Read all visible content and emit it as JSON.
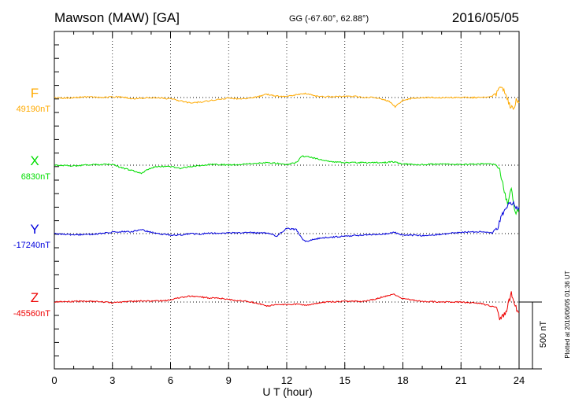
{
  "header": {
    "station": "Mawson (MAW)  [GA]",
    "coords": "GG (-67.60°,  62.88°)",
    "date": "2016/05/05"
  },
  "footer": {
    "plotted": "Plotted at 2016/06/05 01:36 UT",
    "scale_label": "500 nT"
  },
  "chart_data": {
    "type": "line",
    "xlabel": "U T (hour)",
    "xlim": [
      0,
      24
    ],
    "xticks": [
      0,
      3,
      6,
      9,
      12,
      15,
      18,
      21,
      24
    ],
    "scale_bar_nT": 500,
    "series": [
      {
        "name": "F",
        "baseline_label": "49190nT",
        "color": "#ffaa00",
        "baseline_nT": 49190,
        "points": [
          [
            0,
            0
          ],
          [
            0.5,
            -5
          ],
          [
            1,
            0
          ],
          [
            1.5,
            5
          ],
          [
            2,
            5
          ],
          [
            2.5,
            0
          ],
          [
            3,
            5
          ],
          [
            3.5,
            5
          ],
          [
            4,
            -10
          ],
          [
            4.5,
            -5
          ],
          [
            5,
            0
          ],
          [
            5.5,
            -5
          ],
          [
            6,
            -10
          ],
          [
            6.5,
            -25
          ],
          [
            7,
            -40
          ],
          [
            7.5,
            -35
          ],
          [
            8,
            -25
          ],
          [
            8.5,
            -15
          ],
          [
            9,
            -5
          ],
          [
            9.5,
            -10
          ],
          [
            10,
            -5
          ],
          [
            10.5,
            5
          ],
          [
            11,
            25
          ],
          [
            11.5,
            10
          ],
          [
            12,
            10
          ],
          [
            12.5,
            20
          ],
          [
            13,
            30
          ],
          [
            13.5,
            10
          ],
          [
            14,
            5
          ],
          [
            14.5,
            10
          ],
          [
            15,
            10
          ],
          [
            15.5,
            10
          ],
          [
            16,
            0
          ],
          [
            16.5,
            0
          ],
          [
            17,
            -15
          ],
          [
            17.3,
            -30
          ],
          [
            17.6,
            -70
          ],
          [
            18,
            -20
          ],
          [
            18.5,
            -5
          ],
          [
            19,
            0
          ],
          [
            20,
            0
          ],
          [
            21,
            0
          ],
          [
            22,
            0
          ],
          [
            22.6,
            10
          ],
          [
            22.9,
            40
          ],
          [
            23.1,
            100
          ],
          [
            23.3,
            30
          ],
          [
            23.5,
            -50
          ],
          [
            23.7,
            -100
          ],
          [
            23.85,
            -20
          ],
          [
            24,
            -40
          ]
        ]
      },
      {
        "name": "X",
        "baseline_label": "6830nT",
        "color": "#00dd00",
        "baseline_nT": 6830,
        "points": [
          [
            0,
            0
          ],
          [
            1,
            -5
          ],
          [
            2,
            5
          ],
          [
            3,
            5
          ],
          [
            3.5,
            -20
          ],
          [
            4,
            -40
          ],
          [
            4.5,
            -60
          ],
          [
            5,
            -20
          ],
          [
            5.5,
            -10
          ],
          [
            6,
            -10
          ],
          [
            6.5,
            -25
          ],
          [
            7,
            -10
          ],
          [
            7.5,
            -5
          ],
          [
            8,
            5
          ],
          [
            8.5,
            5
          ],
          [
            9,
            0
          ],
          [
            9.5,
            5
          ],
          [
            10,
            10
          ],
          [
            10.5,
            15
          ],
          [
            11,
            20
          ],
          [
            11.5,
            15
          ],
          [
            12,
            5
          ],
          [
            12.5,
            20
          ],
          [
            12.8,
            70
          ],
          [
            13.2,
            60
          ],
          [
            14,
            35
          ],
          [
            14.5,
            25
          ],
          [
            15,
            20
          ],
          [
            16,
            20
          ],
          [
            17,
            20
          ],
          [
            17.5,
            25
          ],
          [
            18,
            10
          ],
          [
            19,
            5
          ],
          [
            20,
            10
          ],
          [
            21,
            5
          ],
          [
            22,
            10
          ],
          [
            22.8,
            5
          ],
          [
            23,
            -40
          ],
          [
            23.2,
            -160
          ],
          [
            23.4,
            -300
          ],
          [
            23.6,
            -180
          ],
          [
            23.8,
            -360
          ],
          [
            24,
            -330
          ]
        ]
      },
      {
        "name": "Y",
        "baseline_label": "-17240nT",
        "color": "#0000dd",
        "baseline_nT": -17240,
        "points": [
          [
            0,
            0
          ],
          [
            1,
            -10
          ],
          [
            2,
            -5
          ],
          [
            3,
            10
          ],
          [
            3.5,
            15
          ],
          [
            4,
            15
          ],
          [
            4.5,
            30
          ],
          [
            5,
            10
          ],
          [
            5.5,
            -5
          ],
          [
            6,
            -10
          ],
          [
            6.5,
            -10
          ],
          [
            7,
            0
          ],
          [
            7.5,
            -5
          ],
          [
            8,
            5
          ],
          [
            8.5,
            0
          ],
          [
            9,
            5
          ],
          [
            9.5,
            5
          ],
          [
            10,
            10
          ],
          [
            10.5,
            5
          ],
          [
            11,
            5
          ],
          [
            11.5,
            -20
          ],
          [
            12,
            40
          ],
          [
            12.5,
            30
          ],
          [
            12.8,
            -40
          ],
          [
            13,
            -60
          ],
          [
            13.5,
            -40
          ],
          [
            14,
            -30
          ],
          [
            15,
            -20
          ],
          [
            16,
            -10
          ],
          [
            17,
            -5
          ],
          [
            17.5,
            10
          ],
          [
            18,
            -10
          ],
          [
            19,
            -15
          ],
          [
            20,
            -5
          ],
          [
            21,
            10
          ],
          [
            22,
            15
          ],
          [
            22.6,
            5
          ],
          [
            22.9,
            50
          ],
          [
            23.1,
            150
          ],
          [
            23.3,
            170
          ],
          [
            23.5,
            240
          ],
          [
            23.8,
            210
          ],
          [
            24,
            200
          ]
        ]
      },
      {
        "name": "Z",
        "baseline_label": "-45560nT",
        "color": "#ee0000",
        "baseline_nT": -45560,
        "points": [
          [
            0,
            0
          ],
          [
            1,
            5
          ],
          [
            2,
            5
          ],
          [
            3,
            -5
          ],
          [
            3.5,
            0
          ],
          [
            4,
            5
          ],
          [
            4.5,
            10
          ],
          [
            5,
            5
          ],
          [
            5.5,
            10
          ],
          [
            6,
            15
          ],
          [
            6.5,
            35
          ],
          [
            7,
            45
          ],
          [
            7.5,
            40
          ],
          [
            8,
            30
          ],
          [
            8.5,
            30
          ],
          [
            9,
            20
          ],
          [
            9.5,
            10
          ],
          [
            10,
            5
          ],
          [
            10.5,
            -10
          ],
          [
            11,
            -30
          ],
          [
            11.5,
            -20
          ],
          [
            12,
            -20
          ],
          [
            12.5,
            -15
          ],
          [
            13,
            -25
          ],
          [
            13.5,
            -10
          ],
          [
            14,
            0
          ],
          [
            15,
            5
          ],
          [
            16,
            5
          ],
          [
            16.5,
            20
          ],
          [
            17,
            40
          ],
          [
            17.5,
            60
          ],
          [
            18,
            25
          ],
          [
            19,
            5
          ],
          [
            20,
            0
          ],
          [
            21,
            0
          ],
          [
            22,
            -10
          ],
          [
            22.8,
            -40
          ],
          [
            23,
            -130
          ],
          [
            23.2,
            -100
          ],
          [
            23.4,
            -40
          ],
          [
            23.6,
            60
          ],
          [
            23.8,
            -30
          ],
          [
            24,
            -80
          ]
        ]
      }
    ]
  }
}
